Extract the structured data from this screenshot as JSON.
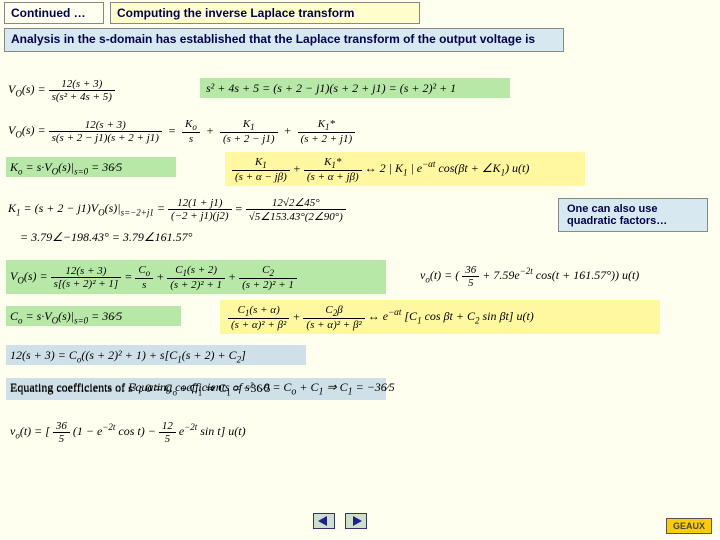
{
  "header": {
    "continued": "Continued …",
    "title": "Computing the inverse Laplace transform"
  },
  "analysis": "Analysis in the s-domain has established that the  Laplace transform of the output voltage is",
  "note": "One can also use quadratic factors…",
  "logo": "GEAUX",
  "equations": {
    "eq1_left": "V<sub>O</sub>(s) =",
    "eq1_num": "12(s + 3)",
    "eq1_den": "s(s² + 4s + 5)",
    "eq1_hi": "s² + 4s + 5 = (s + 2 − j1)(s + 2 + j1) = (s + 2)² + 1",
    "eq2_left": "V<sub>O</sub>(s) =",
    "eq2_num": "12(s + 3)",
    "eq2_den": "s(s + 2 − j1)(s + 2 + j1)",
    "eq2_k0n": "K<sub>o</sub>",
    "eq2_k0d": "s",
    "eq2_k1n": "K<sub>1</sub>",
    "eq2_k1d": "(s + 2 − j1)",
    "eq2_k1sn": "K<sub>1</sub>*",
    "eq2_k1sd": "(s + 2 + j1)",
    "eq3_ko": "K<sub>o</sub> = s·V<sub>O</sub>(s)|<sub>s=0</sub> = 36⁄5",
    "eq3_hi_left_n": "K<sub>1</sub>",
    "eq3_hi_left_d": "(s + α − jβ)",
    "eq3_hi_right_n": "K<sub>1</sub>*",
    "eq3_hi_right_d": "(s + α + jβ)",
    "eq3_hi_tail": " ↔ 2 | K<sub>1</sub> | e<sup>−αt</sup> cos(βt + ∠K<sub>1</sub>) u(t)",
    "eq4_left": "K<sub>1</sub> = (s + 2 − j1)V<sub>O</sub>(s)|<sub>s=−2+j1</sub> =",
    "eq4_m1n": "12(1 + j1)",
    "eq4_m1d": "(−2 + j1)(j2)",
    "eq4_m2n": "12√2∠45°",
    "eq4_m2d": "√5∠153.43°(2∠90°)",
    "eq4b": "= 3.79∠−198.43° = 3.79∠161.57°",
    "eq5_left": "V<sub>O</sub>(s) =",
    "eq5_num": "12(s + 3)",
    "eq5_den": "s[(s + 2)² + 1]",
    "eq5_c0n": "C<sub>o</sub>",
    "eq5_c0d": "s",
    "eq5_c1n": "C<sub>1</sub>(s + 2)",
    "eq5_c1d": "(s + 2)² + 1",
    "eq5_c2n": "C<sub>2</sub>",
    "eq5_c2d": "(s + 2)² + 1",
    "eq5r_left": "v<sub>o</sub>(t) = (",
    "eq5r_n": "36",
    "eq5r_d": "5",
    "eq5r_tail": " + 7.59e<sup>−2t</sup> cos(t + 161.57°)) u(t)",
    "eq6": "C<sub>o</sub> = s·V<sub>O</sub>(s)|<sub>s=0</sub> = 36⁄5",
    "eq6_hi_1n": "C<sub>1</sub>(s + α)",
    "eq6_hi_1d": "(s + α)² + β²",
    "eq6_hi_2n": "C<sub>2</sub>β",
    "eq6_hi_2d": "(s + α)² + β²",
    "eq6_hi_tail": " ↔ e<sup>−αt</sup> [C<sub>1</sub> cos βt + C<sub>2</sub> sin βt] u(t)",
    "eq7": "12(s + 3) = C<sub>o</sub>((s + 2)² + 1) + s[C<sub>1</sub>(s + 2) + C<sub>2</sub>]",
    "eq8": "Equating coefficients of s² : 0 = C<sub>o</sub> + C<sub>1</sub> ⇒ C<sub>1</sub> = −36⁄5",
    "eq9_left": "v<sub>o</sub>(t) = [",
    "eq9_1n": "36",
    "eq9_1d": "5",
    "eq9_mid1": "(1 − e<sup>−2t</sup> cos t) −",
    "eq9_2n": "12",
    "eq9_2d": "5",
    "eq9_mid2": "e<sup>−2t</sup> sin t] u(t)"
  },
  "colors": {
    "bg": "#fffff0",
    "green_hi": "#b8e8a8",
    "yellow_hi": "#fff8a0",
    "blue_hi": "#d0e0e8",
    "blue_box": "#d8e8f0",
    "logo_bg": "#ffcc00"
  }
}
